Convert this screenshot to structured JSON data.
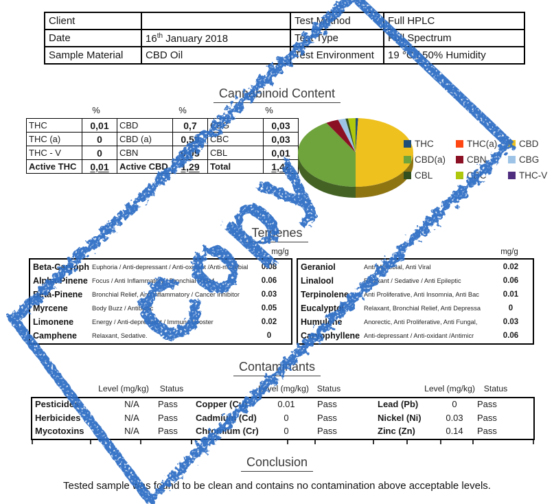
{
  "stamp": {
    "word": "Copy",
    "color": "#2e6ec5"
  },
  "info": {
    "client_label": "Client",
    "client_value": "",
    "method_label": "Test Method",
    "method_value": "Full HPLC",
    "date_label": "Date",
    "date_day": "16",
    "date_ordinal": "th",
    "date_rest": " January 2018",
    "type_label": "Test Type",
    "type_value": "Full Spectrum",
    "sample_label": "Sample Material",
    "sample_value": "CBD Oil",
    "env_label": "Test Environment",
    "env_value": "19 °C / 50% Humidity"
  },
  "cannabinoids": {
    "title": "Cannabinoid Content",
    "unit_headers": [
      "%",
      "%",
      "%"
    ],
    "rows": [
      {
        "c0": "THC",
        "c1": "0,01",
        "c2": "CBD",
        "c3": "0,7",
        "c4": "CBG",
        "c5": "0,03"
      },
      {
        "c0": "THC (a)",
        "c1": "0",
        "c2": "CBD (a)",
        "c3": "0,59",
        "c4": "CBC",
        "c5": "0,03"
      },
      {
        "c0": "THC - V",
        "c1": "0",
        "c2": "CBN",
        "c3": "0,05",
        "c4": "CBL",
        "c5": "0,01"
      },
      {
        "c0": "Active THC",
        "c1": "0,01",
        "c2": "Active CBD",
        "c3": "1,29",
        "c4": "Total",
        "c5": "1,42"
      }
    ]
  },
  "chart_data": {
    "type": "pie",
    "title": "Cannabinoid Content",
    "unit": "%",
    "labels": [
      "THC",
      "THC(a)",
      "CBD",
      "CBD(a)",
      "CBN",
      "CBG",
      "CBL",
      "CBC",
      "THC-V"
    ],
    "values": [
      0.01,
      0,
      0.7,
      0.59,
      0.05,
      0.03,
      0.01,
      0.03,
      0
    ],
    "colors": [
      "#1F4E79",
      "#FF4713",
      "#EEC11E",
      "#6FA33C",
      "#8C1024",
      "#9DC3E6",
      "#33511E",
      "#AFC80C",
      "#4F2D7F"
    ],
    "total": 1.42,
    "legend_position": "right",
    "effect": "3d"
  },
  "terpenes": {
    "title": "Terpenes",
    "unit_left": "mg/g",
    "unit_right": "mg/g",
    "left": [
      {
        "name": "Beta-Caryoph",
        "desc": "Euphoria / Anti-depressant / Anti-oxidant  /Anti-microbial",
        "value": "0.08"
      },
      {
        "name": "Alpha-Pinene",
        "desc": "Focus / Anti Inflammatory / Bronchial Relief",
        "value": "0.06"
      },
      {
        "name": "Beta-Pinene",
        "desc": "Bronchial Relief, Anti Inflammatory / Cancer inhibitor",
        "value": "0.03"
      },
      {
        "name": "Myrcene",
        "desc": "Body Buzz / Antibiotic",
        "value": "0.05"
      },
      {
        "name": "Limonene",
        "desc": "Energy / Anti-depressant / Immune  booster",
        "value": "0.02"
      },
      {
        "name": "Camphene",
        "desc": "Relaxant,  Sedative.",
        "value": "0"
      }
    ],
    "right": [
      {
        "name": "Geraniol",
        "desc": "Anti Microbial, Anti Viral",
        "value": "0.02"
      },
      {
        "name": "Linalool",
        "desc": "Relaxant / Sedative / Anti Epileptic",
        "value": "0.06"
      },
      {
        "name": "Terpinolene",
        "desc": "Anti Proliferative, Anti Insomnia, Anti Bac",
        "value": "0.01"
      },
      {
        "name": "Eucalyptol",
        "desc": "Relaxant, Bronchial Relief, Anti Depressa",
        "value": "0"
      },
      {
        "name": "Humulene",
        "desc": "Anorectic, Anti Proliferative, Anti Fungal,",
        "value": "0.03"
      },
      {
        "name": "Caryophyllene",
        "desc": "Anti-depressant / Anti-oxidant  /Antimicr",
        "value": "0.06"
      }
    ]
  },
  "contaminants": {
    "title": "Contaminants",
    "level_header": "Level (mg/kg)",
    "status_header": "Status",
    "rows": [
      {
        "n1": "Pesticides",
        "l1": "N/A",
        "s1": "Pass",
        "n2": "Copper (Cu)",
        "l2": "0.01",
        "s2": "Pass",
        "n3": "Lead (Pb)",
        "l3": "0",
        "s3": "Pass"
      },
      {
        "n1": "Herbicides",
        "l1": "N/A",
        "s1": "Pass",
        "n2": "Cadmium (Cd)",
        "l2": "0",
        "s2": "Pass",
        "n3": "Nickel (Ni)",
        "l3": "0.03",
        "s3": "Pass"
      },
      {
        "n1": "Mycotoxins",
        "l1": "N/A",
        "s1": "Pass",
        "n2": "Chromium (Cr)",
        "l2": "0",
        "s2": "Pass",
        "n3": "Zinc (Zn)",
        "l3": "0.14",
        "s3": "Pass"
      }
    ]
  },
  "conclusion": {
    "title": "Conclusion",
    "text": "Tested sample was found to be clean and contains no contamination above acceptable levels."
  }
}
